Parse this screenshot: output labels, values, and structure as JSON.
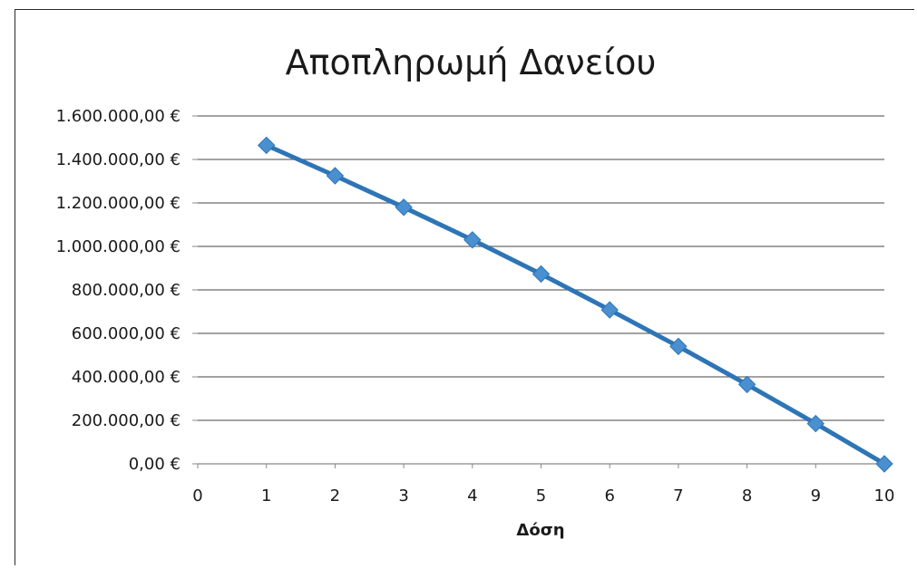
{
  "chart_data": {
    "type": "line",
    "title": "Αποπληρωμή Δανείου",
    "xlabel": "Δόση",
    "ylabel": "",
    "x": [
      1,
      2,
      3,
      4,
      5,
      6,
      7,
      8,
      9,
      10
    ],
    "series": [
      {
        "values": [
          1465000,
          1325000,
          1180000,
          1030000,
          873000,
          708000,
          540000,
          365000,
          185000,
          0
        ],
        "color": "#2e75b6",
        "marker": "diamond"
      }
    ],
    "xlim": [
      0,
      10
    ],
    "ylim": [
      0,
      1600000
    ],
    "x_ticks": [
      "0",
      "1",
      "2",
      "3",
      "4",
      "5",
      "6",
      "7",
      "8",
      "9",
      "10"
    ],
    "y_ticks": [
      "0,00 €",
      "200.000,00 €",
      "400.000,00 €",
      "600.000,00 €",
      "800.000,00 €",
      "1.000.000,00 €",
      "1.200.000,00 €",
      "1.400.000,00 €",
      "1.600.000,00 €"
    ],
    "grid": "horizontal",
    "legend": "none",
    "colors": {
      "series": "#2e75b6",
      "marker": "#4a8fd0",
      "grid": "#6a6a6a",
      "axis": "#888888"
    }
  }
}
